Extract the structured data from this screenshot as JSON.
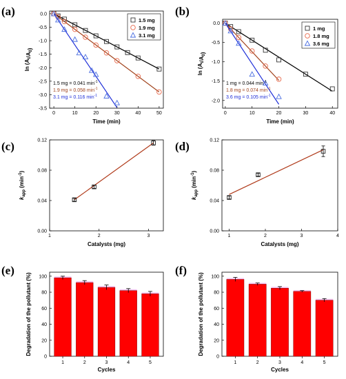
{
  "chart_data": [
    {
      "panel": "(a)",
      "type": "scatter",
      "xlabel": "Time (min)",
      "ylabel": "ln (A_t/A_0)",
      "xlim": [
        -2,
        52
      ],
      "ylim": [
        -3.5,
        0.1
      ],
      "xticks": [
        "0",
        "10",
        "20",
        "30",
        "40",
        "50"
      ],
      "yticks": [
        "0.0",
        "-0.5",
        "-1.0",
        "-1.5",
        "-2.0",
        "-2.5",
        "-3.0",
        "-3.5"
      ],
      "legend_position": "top-right",
      "series": [
        {
          "name": "1.5 mg",
          "marker": "square",
          "color": "#333333",
          "line_color": "#000000",
          "slope": -0.041,
          "x": [
            0,
            2,
            5,
            10,
            15,
            20,
            25,
            30,
            35,
            40,
            50
          ],
          "y": [
            0,
            -0.08,
            -0.2,
            -0.41,
            -0.62,
            -0.82,
            -1.03,
            -1.23,
            -1.44,
            -1.64,
            -2.05
          ]
        },
        {
          "name": "1.9 mg",
          "marker": "circle",
          "color": "#e8684a",
          "line_color": "#a0421b",
          "slope": -0.058,
          "x": [
            0,
            2,
            5,
            10,
            15,
            20,
            25,
            30,
            40,
            50
          ],
          "y": [
            0,
            -0.12,
            -0.29,
            -0.58,
            -0.87,
            -1.16,
            -1.45,
            -1.74,
            -2.32,
            -2.9
          ]
        },
        {
          "name": "3.1 mg",
          "marker": "triangle",
          "color": "#4a6ee0",
          "line_color": "#1f2fd8",
          "slope": -0.116,
          "x": [
            0,
            2,
            5,
            10,
            12,
            15,
            18,
            20,
            25,
            30
          ],
          "y": [
            0,
            -0.23,
            -0.58,
            -0.95,
            -1.45,
            -1.6,
            -2.1,
            -2.25,
            -3.05,
            -3.3
          ]
        }
      ],
      "annotations": [
        {
          "text": "1.5 mg = 0.041 min",
          "sup": "-1",
          "color": "#000000"
        },
        {
          "text": "1.9 mg = 0.058 min",
          "sup": "-1",
          "color": "#a0421b"
        },
        {
          "text": "3.1 mg = 0.116 min",
          "sup": "-1",
          "color": "#1f2fd8"
        }
      ]
    },
    {
      "panel": "(b)",
      "type": "scatter",
      "xlabel": "Time (min)",
      "ylabel": "ln (A_t/A_0)",
      "xlim": [
        -1,
        42
      ],
      "ylim": [
        -2.2,
        0.1
      ],
      "xticks": [
        "0",
        "10",
        "20",
        "30",
        "40"
      ],
      "yticks": [
        "0.0",
        "-0.5",
        "-1.0",
        "-1.5",
        "-2.0"
      ],
      "legend_position": "top-right",
      "series": [
        {
          "name": "1 mg",
          "marker": "square",
          "color": "#333333",
          "line_color": "#000000",
          "slope": -0.044,
          "x": [
            0,
            2,
            5,
            10,
            15,
            20,
            30,
            40
          ],
          "y": [
            0,
            -0.09,
            -0.22,
            -0.44,
            -0.7,
            -0.95,
            -1.32,
            -1.7
          ]
        },
        {
          "name": "1.8 mg",
          "marker": "circle",
          "color": "#e8684a",
          "line_color": "#a0421b",
          "slope": -0.074,
          "x": [
            0,
            2,
            5,
            10,
            15,
            20
          ],
          "y": [
            0,
            -0.15,
            -0.37,
            -0.72,
            -1.11,
            -1.45
          ]
        },
        {
          "name": "3.6 mg",
          "marker": "triangle",
          "color": "#4a6ee0",
          "line_color": "#1f2fd8",
          "slope": -0.105,
          "x": [
            0,
            2,
            5,
            10,
            15,
            20
          ],
          "y": [
            0,
            -0.2,
            -0.52,
            -1.32,
            -1.55,
            -1.9
          ]
        }
      ],
      "annotations": [
        {
          "text": "1 mg = 0.044 min",
          "sup": "-1",
          "color": "#000000"
        },
        {
          "text": "1.8 mg = 0.074 min",
          "sup": "-1",
          "color": "#a0421b"
        },
        {
          "text": "3.6 mg = 0.105 min",
          "sup": "-1",
          "color": "#1f2fd8"
        }
      ]
    },
    {
      "panel": "(c)",
      "type": "scatter",
      "xlabel": "Catalysts (mg)",
      "ylabel": "k_app (min^-1)",
      "xlim": [
        1,
        3.3
      ],
      "ylim": [
        0,
        0.12
      ],
      "xticks": [
        "1",
        "2",
        "3"
      ],
      "yticks": [
        "0.00",
        "0.04",
        "0.08",
        "0.12"
      ],
      "fit_line": [
        [
          1.5,
          0.041
        ],
        [
          3.1,
          0.116
        ]
      ],
      "x": [
        1.5,
        1.9,
        3.1
      ],
      "y": [
        0.041,
        0.058,
        0.116
      ],
      "err": [
        0.002,
        0.002,
        0.003
      ]
    },
    {
      "panel": "(d)",
      "type": "scatter",
      "xlabel": "Catalysts (mg)",
      "ylabel": "k_app (min^-1)",
      "xlim": [
        0.8,
        4
      ],
      "ylim": [
        0,
        0.12
      ],
      "xticks": [
        "1",
        "2",
        "3",
        "4"
      ],
      "yticks": [
        "0.00",
        "0.04",
        "0.08",
        "0.12"
      ],
      "fit_line": [
        [
          1,
          0.048
        ],
        [
          3.6,
          0.107
        ]
      ],
      "x": [
        1,
        1.8,
        3.6
      ],
      "y": [
        0.044,
        0.074,
        0.105
      ],
      "err": [
        0.002,
        0.002,
        0.007
      ]
    },
    {
      "panel": "(e)",
      "type": "bar",
      "xlabel": "Cycles",
      "ylabel": "Degradation of the pollutant (%)",
      "categories": [
        "1",
        "2",
        "3",
        "4",
        "5"
      ],
      "values": [
        98,
        92,
        86,
        82,
        78
      ],
      "err": [
        2,
        2.5,
        3,
        2.5,
        3
      ],
      "ylim": [
        0,
        105
      ],
      "yticks": [
        "0",
        "20",
        "40",
        "60",
        "80",
        "100"
      ],
      "bar_color": "#ff0000"
    },
    {
      "panel": "(f)",
      "type": "bar",
      "xlabel": "Cycles",
      "ylabel": "Degradation of the pollutant (%)",
      "categories": [
        "1",
        "2",
        "3",
        "4",
        "5"
      ],
      "values": [
        96,
        90,
        85,
        81,
        70
      ],
      "err": [
        2.5,
        1.5,
        2,
        1,
        2
      ],
      "ylim": [
        0,
        105
      ],
      "yticks": [
        "0",
        "20",
        "40",
        "60",
        "80",
        "100"
      ],
      "bar_color": "#ff0000"
    }
  ]
}
